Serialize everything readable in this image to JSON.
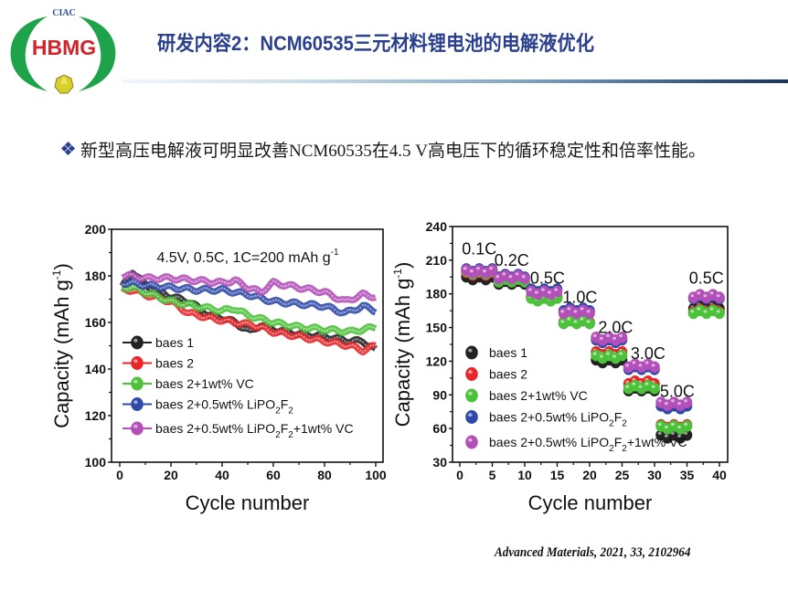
{
  "header": {
    "logo_top_text": "CIAC",
    "logo_main_text": "HBMG",
    "title": "研发内容2：NCM60535三元材料锂电池的电解液优化"
  },
  "bullet": {
    "icon": "diamond-bullet-icon",
    "text": "新型高压电解液可明显改善NCM60535在4.5 V高电压下的循环稳定性和倍率性能。"
  },
  "citation": "Advanced Materials, 2021, 33, 2102964",
  "colors": {
    "title": "#2a3f8f",
    "baes1": "#222222",
    "baes2": "#e8262a",
    "vc": "#4cc23a",
    "lipo2f2": "#2f49a8",
    "lipo2f2_vc": "#b24fb8"
  },
  "chart_data": [
    {
      "type": "line",
      "annotation": "4.5V, 0.5C, 1C=200 mAh g",
      "annotation_sup": "-1",
      "xlabel": "Cycle number",
      "ylabel": "Capacity (mAh g",
      "ylabel_sup": "-1",
      "ylabel_end": ")",
      "xlim": [
        0,
        100
      ],
      "ylim": [
        100,
        200
      ],
      "xticks": [
        "0",
        "20",
        "40",
        "60",
        "80",
        "100"
      ],
      "xtick_values": [
        0,
        20,
        40,
        60,
        80,
        100
      ],
      "yticks": [
        "100",
        "120",
        "140",
        "160",
        "180",
        "200"
      ],
      "ytick_values": [
        100,
        120,
        140,
        160,
        180,
        200
      ],
      "legend_position": "lower-left",
      "series": [
        {
          "name": "baes 1",
          "label_main": "baes 1",
          "color_key": "baes1",
          "x": [
            1,
            5,
            10,
            20,
            27,
            35,
            40,
            45,
            51,
            55,
            60,
            70,
            80,
            90,
            95,
            100
          ],
          "values": [
            175,
            182,
            176,
            171,
            169,
            163,
            162,
            160,
            156,
            159,
            157,
            155,
            154,
            152,
            152,
            148
          ]
        },
        {
          "name": "baes 2",
          "label_main": "baes 2",
          "color_key": "baes2",
          "x": [
            1,
            5,
            10,
            20,
            27,
            35,
            40,
            45,
            51,
            55,
            60,
            70,
            80,
            90,
            95,
            100
          ],
          "values": [
            174,
            174,
            172,
            169,
            164,
            162,
            161,
            160,
            159,
            158,
            156,
            154,
            152,
            150,
            148,
            150
          ]
        },
        {
          "name": "baes 2+1wt% VC",
          "label_main": "baes 2+1wt% VC",
          "color_key": "vc",
          "x": [
            1,
            5,
            10,
            20,
            30,
            40,
            45,
            50,
            60,
            70,
            80,
            90,
            100
          ],
          "values": [
            175,
            175,
            173,
            169,
            167,
            165,
            166,
            163,
            160,
            158,
            157,
            156,
            158
          ]
        },
        {
          "name": "baes 2+0.5wt% LiPO2F2",
          "label_main": "baes 2+0.5wt% LiPO",
          "label_sub1": "2",
          "label_mid": "F",
          "label_sub2": "2",
          "label_tail": "",
          "color_key": "lipo2f2",
          "x": [
            1,
            5,
            10,
            20,
            30,
            40,
            45,
            50,
            60,
            70,
            80,
            88,
            95,
            100
          ],
          "values": [
            177,
            177,
            176,
            175,
            174,
            174,
            173,
            172,
            169,
            168,
            167,
            164,
            167,
            165
          ]
        },
        {
          "name": "baes 2+0.5wt% LiPO2F2+1wt% VC",
          "label_main": "baes 2+0.5wt% LiPO",
          "label_sub1": "2",
          "label_mid": "F",
          "label_sub2": "2",
          "label_tail": "+1wt% VC",
          "color_key": "lipo2f2_vc",
          "x": [
            1,
            5,
            10,
            20,
            30,
            40,
            45,
            50,
            55,
            60,
            70,
            80,
            88,
            95,
            100
          ],
          "values": [
            180,
            180,
            179,
            179,
            178,
            177,
            178,
            175,
            173,
            177,
            175,
            173,
            169,
            172,
            171
          ]
        }
      ]
    },
    {
      "type": "scatter",
      "xlabel": "Cycle number",
      "ylabel": "Capacity (mAh g",
      "ylabel_sup": "-1",
      "ylabel_end": ")",
      "xlim": [
        0,
        40
      ],
      "ylim": [
        30,
        240
      ],
      "xticks": [
        "0",
        "5",
        "10",
        "15",
        "20",
        "25",
        "30",
        "35",
        "40"
      ],
      "xtick_values": [
        0,
        5,
        10,
        15,
        20,
        25,
        30,
        35,
        40
      ],
      "yticks": [
        "30",
        "60",
        "90",
        "120",
        "150",
        "180",
        "210",
        "240"
      ],
      "ytick_values": [
        30,
        60,
        90,
        120,
        150,
        180,
        210,
        240
      ],
      "legend_position": "lower-left",
      "rate_labels": [
        {
          "text": "0.1C",
          "cycle": 3,
          "capacity": 215
        },
        {
          "text": "0.2C",
          "cycle": 8,
          "capacity": 205
        },
        {
          "text": "0.5C",
          "cycle": 13.5,
          "capacity": 189
        },
        {
          "text": "1.0C",
          "cycle": 18.5,
          "capacity": 172
        },
        {
          "text": "2.0C",
          "cycle": 24,
          "capacity": 145
        },
        {
          "text": "3.0C",
          "cycle": 29,
          "capacity": 122
        },
        {
          "text": "5.0C",
          "cycle": 33.5,
          "capacity": 88
        },
        {
          "text": "0.5C",
          "cycle": 38,
          "capacity": 189
        }
      ],
      "segments_cycles": [
        [
          1,
          5
        ],
        [
          6,
          10
        ],
        [
          11,
          15
        ],
        [
          16,
          20
        ],
        [
          21,
          25
        ],
        [
          26,
          30
        ],
        [
          31,
          35
        ],
        [
          36,
          40
        ]
      ],
      "series": [
        {
          "name": "baes 1",
          "label_main": "baes 1",
          "color_key": "baes1",
          "segment_values": [
            194,
            190,
            176,
            155,
            120,
            95,
            53,
            168
          ]
        },
        {
          "name": "baes 2",
          "label_main": "baes 2",
          "color_key": "baes2",
          "segment_values": [
            198,
            192,
            176,
            156,
            127,
            101,
            62,
            165
          ]
        },
        {
          "name": "baes 2+1wt% VC",
          "label_main": "baes 2+1wt% VC",
          "color_key": "vc",
          "segment_values": [
            199,
            192,
            175,
            155,
            124,
            97,
            61,
            164
          ]
        },
        {
          "name": "baes 2+0.5wt% LiPO2F2",
          "label_main": "baes 2+0.5wt% LiPO",
          "label_sub1": "2",
          "label_mid": "F",
          "label_sub2": "2",
          "label_tail": "",
          "color_key": "lipo2f2",
          "segment_values": [
            201,
            196,
            183,
            166,
            138,
            114,
            79,
            177
          ]
        },
        {
          "name": "baes 2+0.5wt% LiPO2F2+1wt% VC",
          "label_main": "baes 2+0.5wt% LiPO",
          "label_sub1": "2",
          "label_mid": "F",
          "label_sub2": "2",
          "label_tail": "+1wt% VC",
          "color_key": "lipo2f2_vc",
          "segment_values": [
            200,
            195,
            181,
            164,
            140,
            116,
            82,
            178
          ]
        }
      ]
    }
  ]
}
